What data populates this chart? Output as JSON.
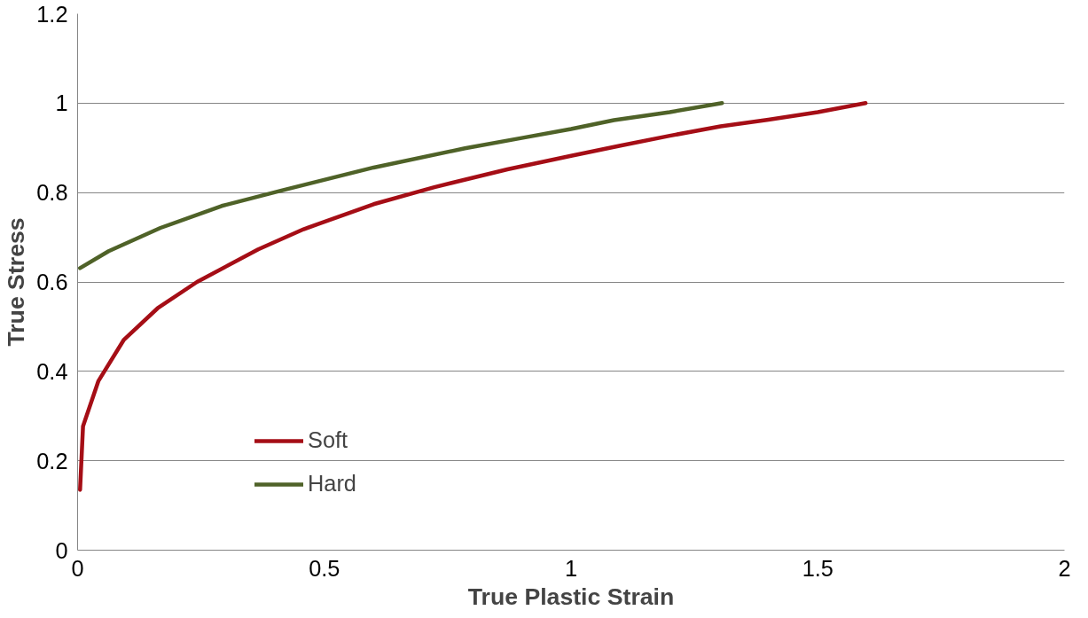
{
  "chart_data": {
    "type": "line",
    "xlabel": "True Plastic Strain",
    "ylabel": "True Stress",
    "xlim": [
      0,
      2
    ],
    "xticks": [
      0,
      0.5,
      1,
      1.5,
      2
    ],
    "ylim": [
      0,
      1.2
    ],
    "yticks": [
      0,
      0.2,
      0.4,
      0.6,
      0.8,
      1,
      1.2
    ],
    "grid": "y",
    "legend": "bottom left",
    "marker": "none",
    "line_style": "solid",
    "series": [
      {
        "name": "Soft",
        "color": "#a50e16",
        "x": [
          0.005,
          0.011,
          0.042,
          0.094,
          0.162,
          0.242,
          0.366,
          0.458,
          0.6,
          0.723,
          0.871,
          1.0,
          1.1,
          1.2,
          1.303,
          1.4,
          1.5,
          1.597
        ],
        "values": [
          0.135,
          0.277,
          0.378,
          0.471,
          0.541,
          0.6,
          0.673,
          0.718,
          0.774,
          0.812,
          0.852,
          0.882,
          0.905,
          0.927,
          0.948,
          0.963,
          0.98,
          1.0
        ]
      },
      {
        "name": "Hard",
        "color": "#4f6228",
        "x": [
          0.005,
          0.063,
          0.168,
          0.292,
          0.415,
          0.6,
          0.785,
          0.9,
          1.0,
          1.087,
          1.2,
          1.306
        ],
        "values": [
          0.631,
          0.669,
          0.721,
          0.77,
          0.805,
          0.856,
          0.899,
          0.922,
          0.942,
          0.962,
          0.98,
          1.0
        ]
      }
    ]
  }
}
